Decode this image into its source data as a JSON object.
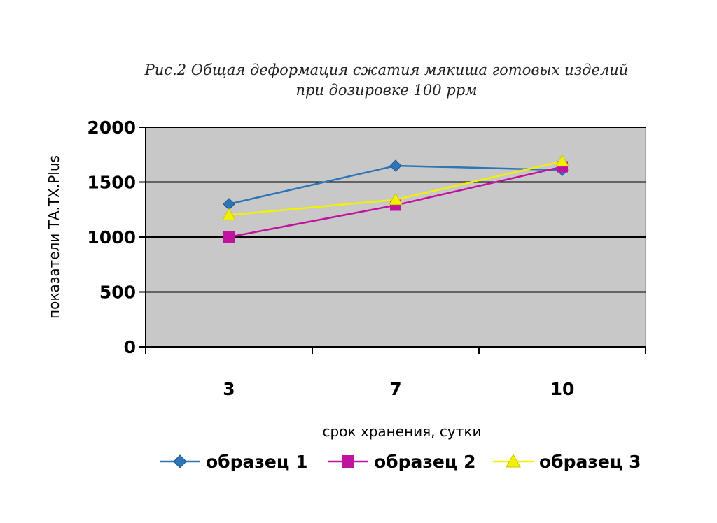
{
  "chart_data": {
    "type": "line",
    "title": "Рис.2 Общая деформация сжатия мякиша готовых изделий",
    "subtitle": "при дозировке 100 ppм",
    "xlabel": "срок хранения, сутки",
    "ylabel": "показатели ТА.ТХ.Plus",
    "categories": [
      "3",
      "7",
      "10"
    ],
    "ylim": [
      0,
      2000
    ],
    "yticks": [
      "0",
      "500",
      "1000",
      "1500",
      "2000"
    ],
    "grid": true,
    "legend_position": "bottom",
    "series": [
      {
        "name": "образец 1",
        "values": [
          1300,
          1650,
          1610
        ],
        "color": "#2e75b6",
        "marker": "diamond"
      },
      {
        "name": "образец 2",
        "values": [
          1000,
          1290,
          1640
        ],
        "color": "#c0149e",
        "marker": "square"
      },
      {
        "name": "образец 3",
        "values": [
          1200,
          1340,
          1690
        ],
        "color": "#f2f200",
        "marker": "triangle"
      }
    ]
  }
}
